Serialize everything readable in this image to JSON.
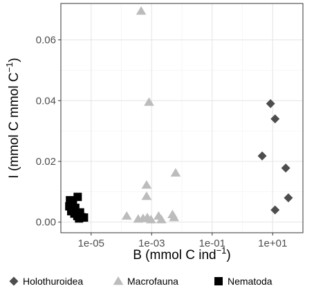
{
  "chart_data": {
    "type": "scatter",
    "title": "",
    "xlabel": {
      "main": "B (mmol C ind",
      "sup": "−1",
      "close": ")"
    },
    "ylabel": {
      "main": "I (mmol C mmol C",
      "sup": "−1",
      "close": ")"
    },
    "x_scale": "log10",
    "xlim": [
      1e-06,
      100
    ],
    "ylim": [
      -0.0035,
      0.072
    ],
    "x_ticks": [
      {
        "value": 1e-05,
        "label": "1e-05"
      },
      {
        "value": 0.001,
        "label": "1e-03"
      },
      {
        "value": 0.1,
        "label": "1e-01"
      },
      {
        "value": 10,
        "label": "1e+01"
      }
    ],
    "y_ticks": [
      {
        "value": 0.0,
        "label": "0.00"
      },
      {
        "value": 0.02,
        "label": "0.02"
      },
      {
        "value": 0.04,
        "label": "0.04"
      },
      {
        "value": 0.06,
        "label": "0.06"
      }
    ],
    "grid": true,
    "legend_position": "bottom",
    "series": [
      {
        "name": "Holothuroidea",
        "shape": "diamond",
        "color": "#4d4d4d",
        "points": [
          {
            "x": 8.5,
            "y": 0.039
          },
          {
            "x": 12,
            "y": 0.034
          },
          {
            "x": 4.5,
            "y": 0.0218
          },
          {
            "x": 27,
            "y": 0.0178
          },
          {
            "x": 33,
            "y": 0.008
          },
          {
            "x": 12,
            "y": 0.004
          }
        ]
      },
      {
        "name": "Macrofauna",
        "shape": "triangle",
        "color": "#bcbcbc",
        "points": [
          {
            "x": 0.00045,
            "y": 0.0695
          },
          {
            "x": 0.00082,
            "y": 0.0395
          },
          {
            "x": 0.0062,
            "y": 0.0162
          },
          {
            "x": 0.00068,
            "y": 0.0122
          },
          {
            "x": 0.00068,
            "y": 0.0085
          },
          {
            "x": 0.00015,
            "y": 0.002
          },
          {
            "x": 0.00036,
            "y": 0.001
          },
          {
            "x": 0.00052,
            "y": 0.0012
          },
          {
            "x": 0.00072,
            "y": 0.0015
          },
          {
            "x": 0.00095,
            "y": 0.0008
          },
          {
            "x": 0.0017,
            "y": 0.002
          },
          {
            "x": 0.0021,
            "y": 0.0008
          },
          {
            "x": 0.0049,
            "y": 0.0025
          },
          {
            "x": 0.0055,
            "y": 0.0015
          }
        ]
      },
      {
        "name": "Nematoda",
        "shape": "square",
        "color": "#000000",
        "points": [
          {
            "x": 2e-06,
            "y": 0.0072
          },
          {
            "x": 3.6e-06,
            "y": 0.0083
          },
          {
            "x": 2.5e-06,
            "y": 0.0065
          },
          {
            "x": 1.9e-06,
            "y": 0.0052
          },
          {
            "x": 3e-06,
            "y": 0.0047
          },
          {
            "x": 2.2e-06,
            "y": 0.0036
          },
          {
            "x": 4.3e-06,
            "y": 0.0032
          },
          {
            "x": 2.8e-06,
            "y": 0.0028
          },
          {
            "x": 3.5e-06,
            "y": 0.002
          },
          {
            "x": 4.8e-06,
            "y": 0.0016
          },
          {
            "x": 5.8e-06,
            "y": 0.0015
          },
          {
            "x": 4e-06,
            "y": 0.0012
          }
        ]
      }
    ]
  }
}
